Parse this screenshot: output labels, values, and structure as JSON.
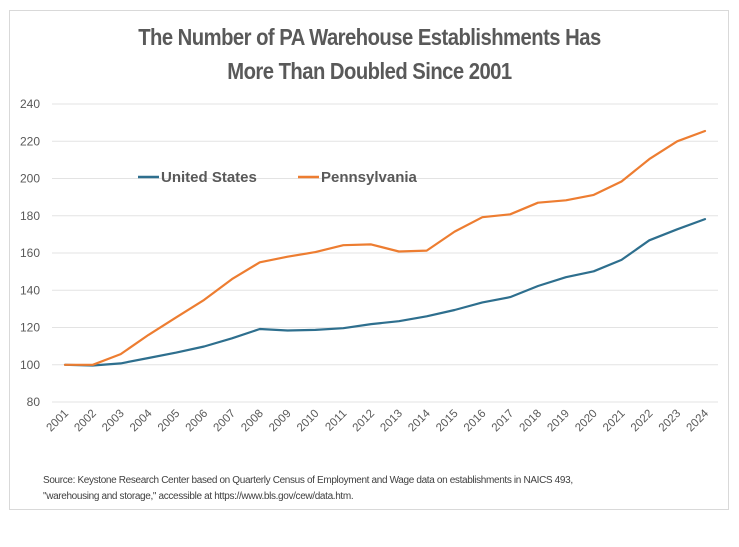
{
  "chart_data": {
    "type": "line",
    "title": "The Number of PA Warehouse Establishments Has More Than Doubled Since 2001",
    "title_lines": [
      "The Number of PA Warehouse Establishments Has",
      "More Than Doubled Since 2001"
    ],
    "xlabel": "",
    "ylabel": "",
    "ylim": [
      80,
      240
    ],
    "yticks": [
      80,
      100,
      120,
      140,
      160,
      180,
      200,
      220,
      240
    ],
    "grid": true,
    "legend_position": "top-left",
    "categories": [
      "2001",
      "2002",
      "2003",
      "2004",
      "2005",
      "2006",
      "2007",
      "2008",
      "2009",
      "2010",
      "2011",
      "2012",
      "2013",
      "2014",
      "2015",
      "2016",
      "2017",
      "2018",
      "2019",
      "2020",
      "2021",
      "2022",
      "2023",
      "2024"
    ],
    "series": [
      {
        "name": "United States",
        "color": "#2e6f8e",
        "values": [
          100,
          99.6,
          100.7,
          103.6,
          106.5,
          109.8,
          114.2,
          119.2,
          118.4,
          118.7,
          119.6,
          121.8,
          123.4,
          126.0,
          129.4,
          133.5,
          136.3,
          142.3,
          147.0,
          150.2,
          156.3,
          166.8,
          172.7,
          178.2
        ]
      },
      {
        "name": "Pennsylvania",
        "color": "#ed7d31",
        "values": [
          100,
          100,
          105.7,
          116.0,
          125.5,
          134.8,
          146.0,
          155.0,
          158.0,
          160.5,
          164.2,
          164.6,
          160.8,
          161.3,
          171.5,
          179.2,
          180.8,
          187.0,
          188.3,
          191.2,
          198.4,
          210.4,
          220.0,
          225.5
        ]
      }
    ],
    "source_lines": [
      "Source: Keystone Research Center based on Quarterly Census of Employment and Wage data  on establishments in NAICS 493,",
      "\"warehousing and storage,\" accessible at https://www.bls.gov/cew/data.htm."
    ]
  }
}
